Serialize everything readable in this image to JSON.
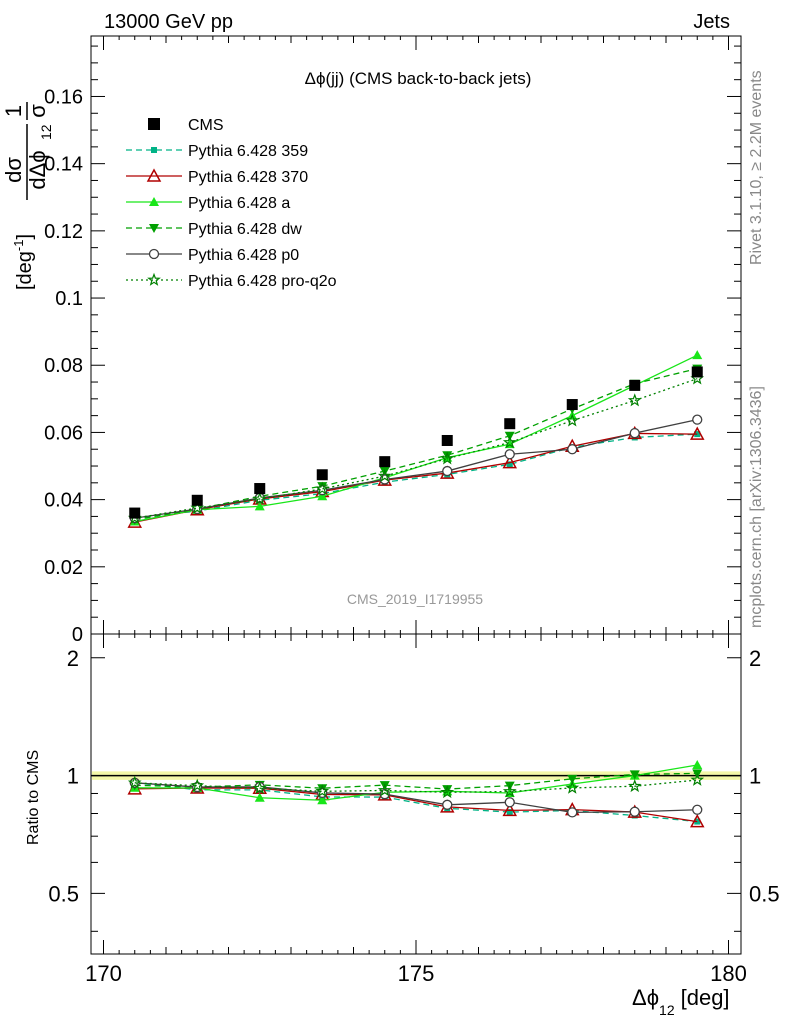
{
  "header": {
    "left": "13000 GeV pp",
    "right": "Jets"
  },
  "side_labels": {
    "rivet": "Rivet 3.1.10, ≥ 2.2M events",
    "mcplots": "mcplots.cern.ch [arXiv:1306.3436]"
  },
  "chart_data": {
    "type": "scatter",
    "title": "Δϕ(jj) (CMS back-to-back jets)",
    "analysis_id": "CMS_2019_I1719955",
    "xlabel": "Δϕ",
    "xlabel_sub": "12",
    "xlabel_unit": "[deg]",
    "ylabel": {
      "frac_num": "1",
      "frac_den": "σ",
      "deriv_num": "dσ",
      "deriv_den": "dΔϕ",
      "deriv_den_sub": "12",
      "unit": "[deg",
      "unit_sup": "-1",
      "unit_close": "]"
    },
    "ratio_ylabel": "Ratio to CMS",
    "xlim": [
      169.8,
      180.2
    ],
    "ylim": [
      0,
      0.178
    ],
    "ratio_ylim": [
      0.35,
      2.3
    ],
    "x_ticks": [
      {
        "value": 170,
        "label": "170"
      },
      {
        "value": 175,
        "label": "175"
      },
      {
        "value": 180,
        "label": "180"
      }
    ],
    "y_ticks": [
      {
        "value": 0,
        "label": "0"
      },
      {
        "value": 0.02,
        "label": "0.02"
      },
      {
        "value": 0.04,
        "label": "0.04"
      },
      {
        "value": 0.06,
        "label": "0.06"
      },
      {
        "value": 0.08,
        "label": "0.08"
      },
      {
        "value": 0.1,
        "label": "0.1"
      },
      {
        "value": 0.12,
        "label": "0.12"
      },
      {
        "value": 0.14,
        "label": "0.14"
      },
      {
        "value": 0.16,
        "label": "0.16"
      }
    ],
    "ratio_y_ticks": [
      {
        "value": 0.5,
        "label": "0.5"
      },
      {
        "value": 1,
        "label": "1"
      },
      {
        "value": 2,
        "label": "2"
      }
    ],
    "x": [
      170.5,
      171.5,
      172.5,
      173.5,
      174.5,
      175.5,
      176.5,
      177.5,
      178.5,
      179.5
    ],
    "data": {
      "name": "CMS",
      "values": [
        0.036,
        0.0398,
        0.0433,
        0.0474,
        0.0513,
        0.0576,
        0.0626,
        0.0683,
        0.074,
        0.078
      ]
    },
    "series": [
      {
        "name": "Pythia 6.428 359",
        "color": "#00b386",
        "dash": "6,4",
        "marker": "square-small",
        "values": [
          0.0345,
          0.0366,
          0.0398,
          0.0418,
          0.0452,
          0.0475,
          0.0505,
          0.0556,
          0.0585,
          0.0595
        ]
      },
      {
        "name": "Pythia 6.428 370",
        "color": "#b00000",
        "dash": "",
        "marker": "triangle-open",
        "values": [
          0.0333,
          0.037,
          0.0402,
          0.0424,
          0.0458,
          0.0479,
          0.051,
          0.0559,
          0.0597,
          0.0595
        ]
      },
      {
        "name": "Pythia 6.428 a",
        "color": "#19e619",
        "dash": "",
        "marker": "triangle",
        "values": [
          0.0335,
          0.037,
          0.038,
          0.041,
          0.0465,
          0.0525,
          0.0565,
          0.065,
          0.074,
          0.083
        ]
      },
      {
        "name": "Pythia 6.428 dw",
        "color": "#00a000",
        "dash": "6,4",
        "marker": "triangle-down",
        "values": [
          0.034,
          0.0372,
          0.041,
          0.044,
          0.0485,
          0.0532,
          0.059,
          0.067,
          0.0745,
          0.079
        ]
      },
      {
        "name": "Pythia 6.428 p0",
        "color": "#404040",
        "dash": "",
        "marker": "circle-open",
        "values": [
          0.0345,
          0.0372,
          0.0405,
          0.0428,
          0.046,
          0.0485,
          0.0535,
          0.055,
          0.0598,
          0.0638
        ]
      },
      {
        "name": "Pythia 6.428 pro-q2o",
        "color": "#008000",
        "dash": "2,3",
        "marker": "star-open",
        "values": [
          0.0345,
          0.0375,
          0.0402,
          0.0432,
          0.047,
          0.0522,
          0.057,
          0.0635,
          0.0695,
          0.076
        ]
      }
    ],
    "ratio_band": 0.025,
    "grid": false,
    "legend_position": "top-left"
  }
}
